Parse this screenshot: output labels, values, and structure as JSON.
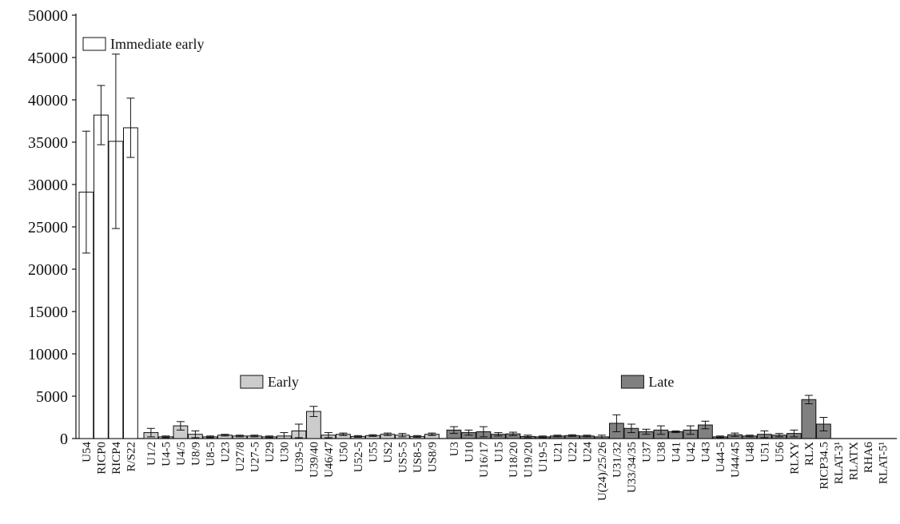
{
  "chart_data": {
    "type": "bar",
    "ylim": [
      0,
      50000
    ],
    "yticks": [
      0,
      5000,
      10000,
      15000,
      20000,
      25000,
      30000,
      35000,
      40000,
      45000,
      50000
    ],
    "grid": false,
    "colors": {
      "Immediate early": "#ffffff",
      "Early": "#cccccc",
      "Late": "#808080"
    },
    "legend": [
      {
        "name": "Immediate early",
        "fill": "#ffffff"
      },
      {
        "name": "Early",
        "fill": "#cccccc"
      },
      {
        "name": "Late",
        "fill": "#808080"
      }
    ],
    "groups": [
      {
        "name": "Immediate early",
        "categories": [
          "U54",
          "RICP0",
          "RICP4",
          "R/S22"
        ],
        "values": [
          29100,
          38200,
          35100,
          36700
        ],
        "errors": [
          7200,
          3500,
          10300,
          3500
        ]
      },
      {
        "name": "Early",
        "categories": [
          "U1/2",
          "U4-5",
          "U4/5",
          "U8/9",
          "U8-5",
          "U23",
          "U27/8",
          "U27-5",
          "U29",
          "U30",
          "U39-5",
          "U39/40",
          "U46/47",
          "U50",
          "U52-5",
          "U55",
          "US2",
          "US5-5",
          "US8-5",
          "US8/9"
        ],
        "values": [
          700,
          200,
          1500,
          500,
          200,
          400,
          300,
          300,
          200,
          300,
          900,
          3200,
          400,
          500,
          250,
          350,
          500,
          400,
          250,
          500
        ],
        "errors": [
          500,
          100,
          500,
          400,
          100,
          100,
          100,
          100,
          100,
          400,
          800,
          600,
          300,
          150,
          100,
          100,
          150,
          200,
          100,
          150
        ]
      },
      {
        "name": "Late",
        "categories": [
          "U3",
          "U10",
          "U16/17",
          "U15",
          "U18/20",
          "U19/20",
          "U19-5",
          "U21",
          "U22",
          "U24",
          "U(24)/25/26",
          "U31/32",
          "U33/34/35",
          "U37",
          "U38",
          "U41",
          "U42",
          "U43",
          "U44-5",
          "U44/45",
          "U48",
          "U51",
          "U56",
          "RLXY",
          "RLX",
          "RICP34.5",
          "RLAT-3¹",
          "RLATX",
          "RHA6",
          "RLAT-5¹"
        ],
        "values": [
          1000,
          700,
          800,
          500,
          550,
          250,
          200,
          300,
          350,
          300,
          200,
          1800,
          1200,
          800,
          1000,
          800,
          1000,
          1600,
          200,
          450,
          300,
          500,
          400,
          600,
          4600,
          1700,
          0,
          0,
          0,
          0
        ],
        "errors": [
          400,
          300,
          600,
          200,
          200,
          150,
          100,
          100,
          100,
          100,
          200,
          1000,
          500,
          300,
          500,
          100,
          500,
          450,
          100,
          200,
          100,
          400,
          200,
          400,
          500,
          800,
          0,
          0,
          0,
          0
        ]
      }
    ]
  }
}
